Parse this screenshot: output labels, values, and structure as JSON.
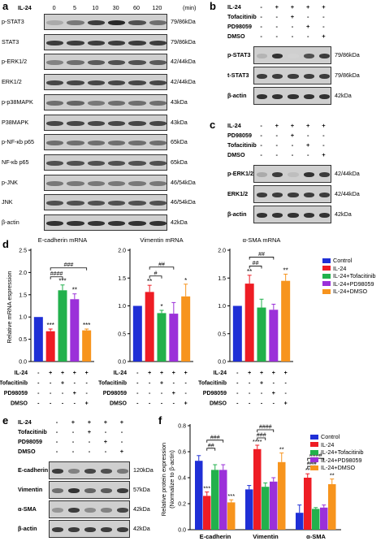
{
  "panel_a": {
    "label": "a",
    "treatment": "IL-24",
    "times": [
      "0",
      "5",
      "10",
      "30",
      "60",
      "120"
    ],
    "unit": "(min)",
    "blots": [
      {
        "name": "p-STAT3",
        "mw": "79/86kDa",
        "levels": [
          0.3,
          0.55,
          0.85,
          0.95,
          0.75,
          0.6
        ]
      },
      {
        "name": "STAT3",
        "mw": "79/86kDa",
        "levels": [
          0.85,
          0.85,
          0.85,
          0.85,
          0.85,
          0.85
        ]
      },
      {
        "name": "p-ERK1/2",
        "mw": "42/44kDa",
        "levels": [
          0.5,
          0.6,
          0.7,
          0.75,
          0.75,
          0.7
        ]
      },
      {
        "name": "ERK1/2",
        "mw": "42/44kDa",
        "levels": [
          0.8,
          0.8,
          0.8,
          0.8,
          0.8,
          0.8
        ]
      },
      {
        "name": "p-p38MAPK",
        "mw": "43kDa",
        "levels": [
          0.6,
          0.65,
          0.55,
          0.6,
          0.6,
          0.6
        ]
      },
      {
        "name": "P38MAPK",
        "mw": "43kDa",
        "levels": [
          0.8,
          0.8,
          0.8,
          0.8,
          0.8,
          0.8
        ]
      },
      {
        "name": "p-NF-κb p65",
        "mw": "65kDa",
        "levels": [
          0.6,
          0.6,
          0.6,
          0.6,
          0.6,
          0.6
        ]
      },
      {
        "name": "NF-κb p65",
        "mw": "65kDa",
        "levels": [
          0.75,
          0.75,
          0.75,
          0.75,
          0.75,
          0.75
        ]
      },
      {
        "name": "p-JNK",
        "mw": "46/54kDa",
        "levels": [
          0.55,
          0.55,
          0.55,
          0.55,
          0.55,
          0.55
        ]
      },
      {
        "name": "JNK",
        "mw": "46/54kDa",
        "levels": [
          0.75,
          0.75,
          0.75,
          0.75,
          0.75,
          0.75
        ]
      },
      {
        "name": "β-actin",
        "mw": "42kDa",
        "levels": [
          0.9,
          0.9,
          0.9,
          0.9,
          0.9,
          0.9
        ]
      }
    ]
  },
  "panel_b": {
    "label": "b",
    "rows": [
      {
        "name": "IL-24",
        "signs": [
          "-",
          "+",
          "+",
          "+",
          "+"
        ]
      },
      {
        "name": "Tofacitinib",
        "signs": [
          "-",
          "-",
          "+",
          "-",
          "-"
        ]
      },
      {
        "name": "PD98059",
        "signs": [
          "-",
          "-",
          "-",
          "+",
          "-"
        ]
      },
      {
        "name": "DMSO",
        "signs": [
          "-",
          "-",
          "-",
          "-",
          "+"
        ]
      }
    ],
    "blots": [
      {
        "name": "p-STAT3",
        "mw": "79/86kDa",
        "levels": [
          0.25,
          0.9,
          0.1,
          0.75,
          0.85
        ]
      },
      {
        "name": "t-STAT3",
        "mw": "79/86kDa",
        "levels": [
          0.85,
          0.85,
          0.85,
          0.85,
          0.85
        ]
      },
      {
        "name": "β-actin",
        "mw": "42kDa",
        "levels": [
          0.9,
          0.9,
          0.9,
          0.9,
          0.9
        ]
      }
    ]
  },
  "panel_c": {
    "label": "c",
    "rows": [
      {
        "name": "IL-24",
        "signs": [
          "-",
          "+",
          "+",
          "+",
          "+"
        ]
      },
      {
        "name": "PD98059",
        "signs": [
          "-",
          "-",
          "+",
          "-",
          "-"
        ]
      },
      {
        "name": "Tofacitinib",
        "signs": [
          "-",
          "-",
          "-",
          "+",
          "-"
        ]
      },
      {
        "name": "DMSO",
        "signs": [
          "-",
          "-",
          "-",
          "-",
          "+"
        ]
      }
    ],
    "blots": [
      {
        "name": "p-ERK1/2",
        "mw": "42/44kDa",
        "levels": [
          0.3,
          0.85,
          0.2,
          0.9,
          0.85
        ]
      },
      {
        "name": "ERK1/2",
        "mw": "42/44kDa",
        "levels": [
          0.85,
          0.85,
          0.85,
          0.85,
          0.85
        ]
      },
      {
        "name": "β-actin",
        "mw": "42kDa",
        "levels": [
          0.9,
          0.9,
          0.9,
          0.9,
          0.9
        ]
      }
    ]
  },
  "panel_d": {
    "label": "d",
    "ylabel": "Relative mRNA espression",
    "legend": [
      {
        "name": "Control",
        "color": "#1f2fd6"
      },
      {
        "name": "IL-24",
        "color": "#ee1c24"
      },
      {
        "name": "IL-24+Tofacitinib",
        "color": "#22b14c"
      },
      {
        "name": "IL-24+PD98059",
        "color": "#9b30d9"
      },
      {
        "name": "IL-24+DMSO",
        "color": "#f7941d"
      }
    ],
    "treatment_rows": [
      {
        "name": "IL-24",
        "signs": [
          "-",
          "+",
          "+",
          "+",
          "+"
        ]
      },
      {
        "name": "Tofacitinib",
        "signs": [
          "-",
          "-",
          "+",
          "-",
          "-"
        ]
      },
      {
        "name": "PD98059",
        "signs": [
          "-",
          "-",
          "-",
          "+",
          "-"
        ]
      },
      {
        "name": "DMSO",
        "signs": [
          "-",
          "-",
          "-",
          "-",
          "+"
        ]
      }
    ]
  },
  "panel_e": {
    "label": "e",
    "rows": [
      {
        "name": "IL-24",
        "signs": [
          "-",
          "+",
          "+",
          "+",
          "+"
        ]
      },
      {
        "name": "Tofacitinib",
        "signs": [
          "-",
          "-",
          "+",
          "-",
          "-"
        ]
      },
      {
        "name": "PD98059",
        "signs": [
          "-",
          "-",
          "-",
          "+",
          "-"
        ]
      },
      {
        "name": "DMSO",
        "signs": [
          "-",
          "-",
          "-",
          "-",
          "+"
        ]
      }
    ],
    "blots": [
      {
        "name": "E-cadherin",
        "mw": "120kDa",
        "levels": [
          0.85,
          0.5,
          0.8,
          0.75,
          0.55
        ]
      },
      {
        "name": "Vimentin",
        "mw": "57kDa",
        "levels": [
          0.6,
          0.9,
          0.65,
          0.7,
          0.85
        ]
      },
      {
        "name": "α-SMA",
        "mw": "42kDa",
        "levels": [
          0.4,
          0.85,
          0.45,
          0.5,
          0.8
        ]
      },
      {
        "name": "β-actin",
        "mw": "42kDa",
        "levels": [
          0.85,
          0.85,
          0.85,
          0.85,
          0.85
        ]
      }
    ]
  },
  "panel_f": {
    "label": "f",
    "ylabel": "Relative protein expression",
    "ylabel2": "(Normalize to β-actin)"
  },
  "chart_data": [
    {
      "type": "bar",
      "title": "E-cadherin mRNA",
      "xlabel": "",
      "ylabel": "Relative mRNA espression",
      "ylim": [
        0,
        2.5
      ],
      "yticks": [
        "0.0",
        "0.5",
        "1.0",
        "1.5",
        "2.0",
        "2.5"
      ],
      "categories": [
        "Control",
        "IL-24",
        "IL-24+Tofacitinib",
        "IL-24+PD98059",
        "IL-24+DMSO"
      ],
      "values": [
        1.0,
        0.68,
        1.6,
        1.4,
        0.7
      ],
      "errors": [
        0.0,
        0.05,
        0.12,
        0.12,
        0.03
      ],
      "stars": [
        "",
        "***",
        "***",
        "**",
        "***"
      ],
      "brackets": [
        "####",
        "###"
      ]
    },
    {
      "type": "bar",
      "title": "Vimentin mRNA",
      "xlabel": "",
      "ylabel": "",
      "ylim": [
        0,
        2.0
      ],
      "yticks": [
        "0.0",
        "0.5",
        "1.0",
        "1.5",
        "2.0"
      ],
      "categories": [
        "Control",
        "IL-24",
        "IL-24+Tofacitinib",
        "IL-24+PD98059",
        "IL-24+DMSO"
      ],
      "values": [
        1.0,
        1.25,
        0.87,
        0.86,
        1.17
      ],
      "errors": [
        0.0,
        0.12,
        0.05,
        0.2,
        0.22
      ],
      "stars": [
        "",
        "**",
        "*",
        "",
        "*"
      ],
      "brackets": [
        "#",
        "##"
      ]
    },
    {
      "type": "bar",
      "title": "α-SMA mRNA",
      "xlabel": "",
      "ylabel": "",
      "ylim": [
        0,
        2.0
      ],
      "yticks": [
        "0.0",
        "0.5",
        "1.0",
        "1.5",
        "2.0"
      ],
      "categories": [
        "Control",
        "IL-24",
        "IL-24+Tofacitinib",
        "IL-24+PD98059",
        "IL-24+DMSO"
      ],
      "values": [
        1.0,
        1.4,
        0.97,
        0.93,
        1.45
      ],
      "errors": [
        0.0,
        0.15,
        0.15,
        0.1,
        0.12
      ],
      "stars": [
        "",
        "**",
        "",
        "",
        "**"
      ],
      "brackets": [
        "##",
        "##"
      ]
    },
    {
      "type": "bar",
      "title": "",
      "xlabel": "",
      "ylabel": "Relative protein expression (Normalize to β-actin)",
      "ylim": [
        0,
        0.8
      ],
      "yticks": [
        "0.0",
        "0.2",
        "0.4",
        "0.6",
        "0.8"
      ],
      "categories": [
        "E-cadherin",
        "Vimentin",
        "α-SMA"
      ],
      "series": [
        {
          "name": "Control",
          "values": [
            0.53,
            0.31,
            0.13
          ],
          "errors": [
            0.04,
            0.03,
            0.06
          ],
          "stars": [
            "",
            "",
            ""
          ]
        },
        {
          "name": "IL-24",
          "values": [
            0.26,
            0.62,
            0.4
          ],
          "errors": [
            0.03,
            0.03,
            0.03
          ],
          "stars": [
            "***",
            "****",
            "**"
          ]
        },
        {
          "name": "IL-24+Tofacitinib",
          "values": [
            0.46,
            0.33,
            0.16
          ],
          "errors": [
            0.04,
            0.03,
            0.01
          ],
          "stars": [
            "",
            "",
            ""
          ]
        },
        {
          "name": "IL-24+PD98059",
          "values": [
            0.46,
            0.37,
            0.17
          ],
          "errors": [
            0.04,
            0.03,
            0.02
          ],
          "stars": [
            "",
            "",
            ""
          ]
        },
        {
          "name": "IL-24+DMSO",
          "values": [
            0.21,
            0.52,
            0.35
          ],
          "errors": [
            0.02,
            0.07,
            0.04
          ],
          "stars": [
            "***",
            "**",
            "**"
          ]
        }
      ],
      "brackets": [
        "##",
        "###",
        "###",
        "####",
        "###",
        "####"
      ]
    }
  ]
}
